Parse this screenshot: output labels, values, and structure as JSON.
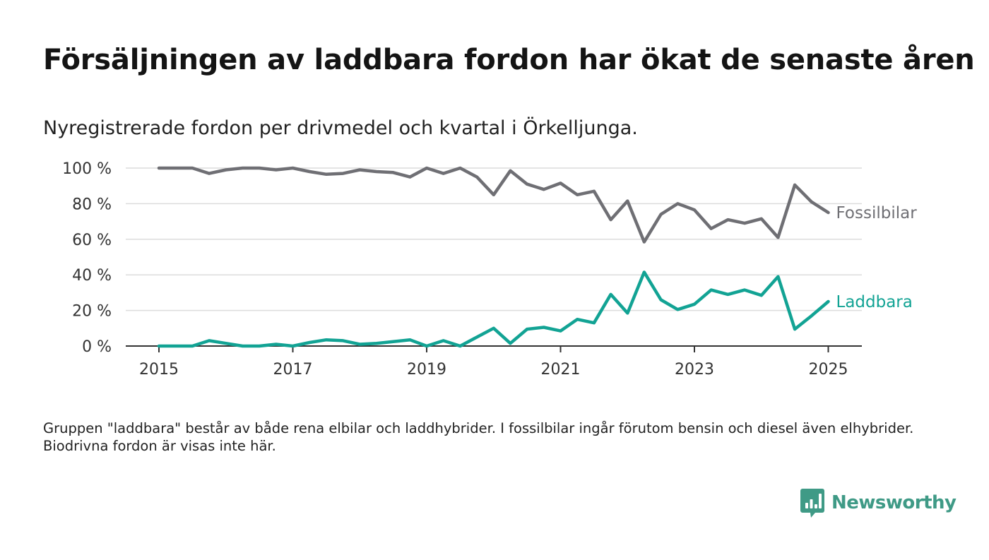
{
  "title": "Försäljningen av laddbara fordon har ökat de senaste åren",
  "subtitle": "Nyregistrerade fordon per drivmedel och kvartal i Örkelljunga.",
  "note": "Gruppen \"laddbara\" består av både rena elbilar och laddhybrider. I fossilbilar ingår förutom bensin och diesel även elhybrider. Biodrivna fordon är visas inte här.",
  "brand": {
    "name": "Newsworthy",
    "color": "#3f9a86",
    "icon": "newsworthy-bar-chart-icon"
  },
  "chart_data": {
    "type": "line",
    "x_start": 2015.0,
    "x_step": 0.25,
    "xlim": [
      2014.75,
      2025.5
    ],
    "ylim": [
      0,
      100
    ],
    "x_ticks": [
      2015,
      2017,
      2019,
      2021,
      2023,
      2025
    ],
    "x_tick_labels": [
      "2015",
      "2017",
      "2019",
      "2021",
      "2023",
      "2025"
    ],
    "y_ticks": [
      0,
      20,
      40,
      60,
      80,
      100
    ],
    "y_tick_labels": [
      "0 %",
      "20 %",
      "40 %",
      "60 %",
      "80 %",
      "100 %"
    ],
    "grid": true,
    "legend": "inline labels at line ends",
    "series": [
      {
        "name": "Fossilbilar",
        "color": "#6f6f74",
        "values": [
          100,
          100,
          100,
          97,
          99,
          100,
          100,
          99,
          100,
          98,
          96.5,
          97,
          99,
          98,
          97.5,
          95,
          100,
          97,
          100,
          95,
          85,
          98.5,
          91,
          88,
          91.5,
          85,
          87,
          71,
          81.5,
          58.5,
          74,
          80,
          76.5,
          66,
          71,
          69,
          71.5,
          61,
          90.5,
          81,
          75
        ]
      },
      {
        "name": "Laddbara",
        "color": "#12a394",
        "values": [
          0,
          0,
          0,
          3,
          1.5,
          0,
          0,
          1,
          0,
          2,
          3.5,
          3,
          1,
          1.5,
          2.5,
          3.5,
          0,
          3,
          0,
          5,
          10,
          1.5,
          9.5,
          10.5,
          8.5,
          15,
          13,
          29,
          18.5,
          41.5,
          26,
          20.5,
          23.5,
          31.5,
          29,
          31.5,
          28.5,
          39,
          9.5,
          17,
          25
        ]
      }
    ]
  }
}
